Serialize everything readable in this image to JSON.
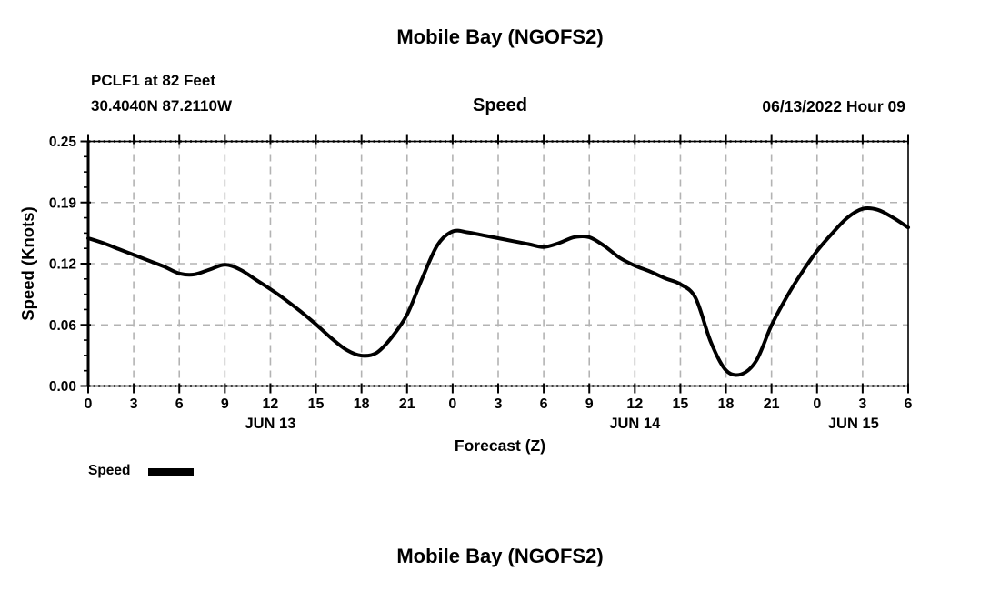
{
  "page": {
    "title": "Mobile Bay (NGOFS2)",
    "station_line1": "PCLF1 at 82 Feet",
    "station_line2": "30.4040N  87.2110W",
    "panel_subtitle": "Speed",
    "run_label": "06/13/2022 Hour 09",
    "x_axis_label": "Forecast (Z)",
    "y_axis_label": "Speed (Knots)",
    "legend_label": "Speed",
    "next_panel_title": "Mobile Bay (NGOFS2)"
  },
  "chart_data": {
    "type": "line",
    "title": "Speed",
    "xlabel": "Forecast (Z)",
    "ylabel": "Speed (Knots)",
    "xlim": [
      0,
      54
    ],
    "ylim": [
      0,
      0.25
    ],
    "grid": true,
    "line_color": "#000000",
    "grid_color": "#b3b3b3",
    "legend": {
      "label": "Speed",
      "position": "bottom-left"
    },
    "x_hours": [
      0,
      1,
      2,
      3,
      4,
      5,
      6,
      7,
      8,
      9,
      10,
      11,
      12,
      13,
      14,
      15,
      16,
      17,
      18,
      19,
      20,
      21,
      22,
      23,
      24,
      25,
      26,
      27,
      28,
      29,
      30,
      31,
      32,
      33,
      34,
      35,
      36,
      37,
      38,
      39,
      40,
      41,
      42,
      43,
      44,
      45,
      46,
      47,
      48,
      49,
      50,
      51,
      52,
      53,
      54
    ],
    "values": [
      0.151,
      0.146,
      0.14,
      0.134,
      0.128,
      0.122,
      0.115,
      0.114,
      0.119,
      0.124,
      0.119,
      0.109,
      0.099,
      0.088,
      0.076,
      0.063,
      0.049,
      0.037,
      0.031,
      0.034,
      0.05,
      0.073,
      0.11,
      0.144,
      0.158,
      0.157,
      0.154,
      0.151,
      0.148,
      0.145,
      0.142,
      0.146,
      0.152,
      0.152,
      0.143,
      0.131,
      0.123,
      0.117,
      0.11,
      0.104,
      0.09,
      0.045,
      0.016,
      0.012,
      0.026,
      0.062,
      0.091,
      0.116,
      0.138,
      0.156,
      0.172,
      0.181,
      0.18,
      0.172,
      0.162
    ],
    "x_tick_hours": [
      0,
      3,
      6,
      9,
      12,
      15,
      18,
      21,
      24,
      27,
      30,
      33,
      36,
      39,
      42,
      45,
      48,
      51,
      54
    ],
    "x_tick_labels": [
      "0",
      "3",
      "6",
      "9",
      "12",
      "15",
      "18",
      "21",
      "0",
      "3",
      "6",
      "9",
      "12",
      "15",
      "18",
      "21",
      "0",
      "3",
      "6"
    ],
    "y_ticks": [
      {
        "label": "0.00",
        "value": 0
      },
      {
        "label": "0.06",
        "value": 0.0625
      },
      {
        "label": "0.12",
        "value": 0.125
      },
      {
        "label": "0.19",
        "value": 0.1875
      },
      {
        "label": "0.25",
        "value": 0.25
      }
    ],
    "y_minor_step": 0.015625,
    "day_labels": [
      {
        "label": "JUN 13",
        "hour": 12
      },
      {
        "label": "JUN 14",
        "hour": 36
      },
      {
        "label": "JUN 15",
        "hour": 50.4
      }
    ]
  }
}
